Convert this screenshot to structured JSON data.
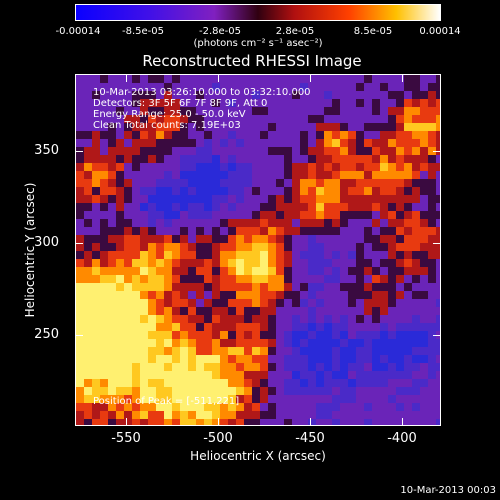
{
  "colorbar": {
    "ticks": [
      "-0.00014",
      "-8.5e-05",
      "-2.8e-05",
      "2.8e-05",
      "8.5e-05",
      "0.00014"
    ],
    "units": "(photons cm⁻² s⁻¹ asec⁻²)",
    "colors": [
      "#1a1aff",
      "#5a1ae0",
      "#8a2ab0",
      "#c83030",
      "#ff6a00",
      "#ffd040",
      "#ffffff"
    ]
  },
  "title": "Reconstructed RHESSI Image",
  "annotations": {
    "time_range": "10-Mar-2013 03:26:10.000 to 03:32:10.000",
    "detectors": "Detectors: 3F 5F 6F 7F 8F 9F, Att 0",
    "energy_range": "Energy Range: 25.0 - 50.0 keV",
    "method_counts": "Clean    Total counts: 7.19E+03",
    "peak": "Position of Peak = [-511,221]"
  },
  "axes": {
    "xlabel": "Heliocentric X (arcsec)",
    "ylabel": "Heliocentric Y (arcsec)",
    "xticks": [
      "-550",
      "-500",
      "-450",
      "-400"
    ],
    "yticks": [
      "350",
      "300",
      "250"
    ]
  },
  "footer_date": "10-Mar-2013 00:03"
}
